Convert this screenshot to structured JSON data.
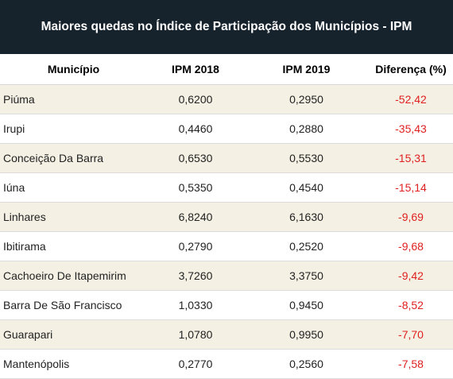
{
  "title": "Maiores quedas no Índice de Participação dos Municípios - IPM",
  "headers": [
    "Município",
    "IPM 2018",
    "IPM 2019",
    "Diferença (%)"
  ],
  "rows": [
    [
      "Piúma",
      "0,6200",
      "0,2950",
      "-52,42"
    ],
    [
      "Irupi",
      "0,4460",
      "0,2880",
      "-35,43"
    ],
    [
      "Conceição Da Barra",
      "0,6530",
      "0,5530",
      "-15,31"
    ],
    [
      "Iúna",
      "0,5350",
      "0,4540",
      "-15,14"
    ],
    [
      "Linhares",
      "6,8240",
      "6,1630",
      "-9,69"
    ],
    [
      "Ibitirama",
      "0,2790",
      "0,2520",
      "-9,68"
    ],
    [
      "Cachoeiro De Itapemirim",
      "3,7260",
      "3,3750",
      "-9,42"
    ],
    [
      "Barra De São Francisco",
      "1,0330",
      "0,9450",
      "-8,52"
    ],
    [
      "Guarapari",
      "1,0780",
      "0,9950",
      "-7,70"
    ],
    [
      "Mantenópolis",
      "0,2770",
      "0,2560",
      "-7,58"
    ]
  ],
  "colors": {
    "header_bg": "#16232d",
    "shade_row": "#f4f1e4",
    "negative": "#e02020"
  }
}
